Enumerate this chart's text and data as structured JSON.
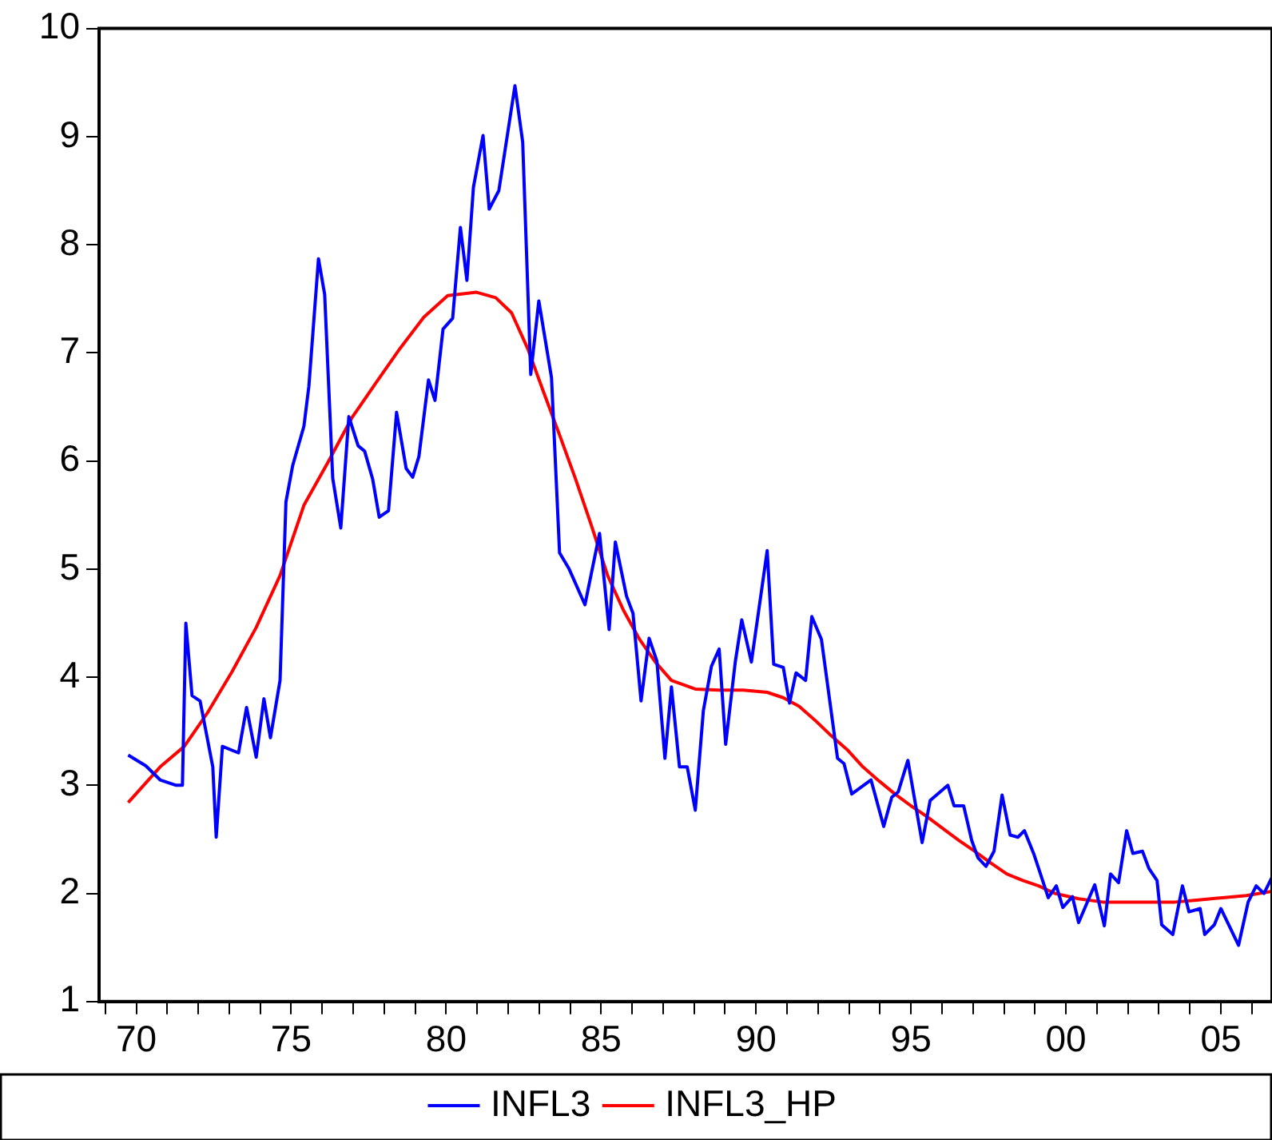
{
  "chart_data": {
    "type": "line",
    "legend": "bottom",
    "grid": false,
    "marker": "none",
    "line_style": "solid",
    "xlim": [
      1968.8,
      2006.65
    ],
    "ylim": [
      1,
      10
    ],
    "yticks": [
      1,
      2,
      3,
      4,
      5,
      6,
      7,
      8,
      9,
      10
    ],
    "xticks": [
      {
        "value": 1969,
        "label": null
      },
      {
        "value": 1970,
        "label": "70"
      },
      {
        "value": 1971,
        "label": null
      },
      {
        "value": 1972,
        "label": null
      },
      {
        "value": 1973,
        "label": null
      },
      {
        "value": 1974,
        "label": null
      },
      {
        "value": 1975,
        "label": "75"
      },
      {
        "value": 1976,
        "label": null
      },
      {
        "value": 1977,
        "label": null
      },
      {
        "value": 1978,
        "label": null
      },
      {
        "value": 1979,
        "label": null
      },
      {
        "value": 1980,
        "label": "80"
      },
      {
        "value": 1981,
        "label": null
      },
      {
        "value": 1982,
        "label": null
      },
      {
        "value": 1983,
        "label": null
      },
      {
        "value": 1984,
        "label": null
      },
      {
        "value": 1985,
        "label": "85"
      },
      {
        "value": 1986,
        "label": null
      },
      {
        "value": 1987,
        "label": null
      },
      {
        "value": 1988,
        "label": null
      },
      {
        "value": 1989,
        "label": null
      },
      {
        "value": 1990,
        "label": "90"
      },
      {
        "value": 1991,
        "label": null
      },
      {
        "value": 1992,
        "label": null
      },
      {
        "value": 1993,
        "label": null
      },
      {
        "value": 1994,
        "label": null
      },
      {
        "value": 1995,
        "label": "95"
      },
      {
        "value": 1996,
        "label": null
      },
      {
        "value": 1997,
        "label": null
      },
      {
        "value": 1998,
        "label": null
      },
      {
        "value": 1999,
        "label": null
      },
      {
        "value": 2000,
        "label": "00"
      },
      {
        "value": 2001,
        "label": null
      },
      {
        "value": 2002,
        "label": null
      },
      {
        "value": 2003,
        "label": null
      },
      {
        "value": 2004,
        "label": null
      },
      {
        "value": 2005,
        "label": "05"
      },
      {
        "value": 2006,
        "label": null
      }
    ],
    "series": [
      {
        "name": "INFL3",
        "color": "#0000ff",
        "x": [
          1969.74,
          1970.31,
          1970.77,
          1971.29,
          1971.49,
          1971.6,
          1971.8,
          1972.06,
          1972.47,
          1972.58,
          1972.78,
          1973.3,
          1973.56,
          1973.87,
          1974.12,
          1974.33,
          1974.64,
          1974.83,
          1975.05,
          1975.41,
          1975.57,
          1975.88,
          1976.08,
          1976.34,
          1976.6,
          1976.86,
          1977.16,
          1977.37,
          1977.63,
          1977.84,
          1978.14,
          1978.4,
          1978.71,
          1978.92,
          1979.12,
          1979.43,
          1979.64,
          1979.9,
          1980.21,
          1980.46,
          1980.67,
          1980.88,
          1981.19,
          1981.39,
          1981.7,
          1982.22,
          1982.47,
          1982.73,
          1982.99,
          1983.4,
          1983.66,
          1983.97,
          1984.48,
          1984.95,
          1985.26,
          1985.46,
          1985.82,
          1986.03,
          1986.29,
          1986.55,
          1986.8,
          1987.06,
          1987.27,
          1987.53,
          1987.78,
          1988.04,
          1988.3,
          1988.56,
          1988.81,
          1989.02,
          1989.33,
          1989.54,
          1989.85,
          1990.36,
          1990.57,
          1990.88,
          1991.08,
          1991.29,
          1991.6,
          1991.8,
          1992.11,
          1992.63,
          1992.84,
          1993.09,
          1993.71,
          1994.12,
          1994.38,
          1994.59,
          1994.9,
          1995.36,
          1995.62,
          1996.19,
          1996.39,
          1996.7,
          1996.96,
          1997.16,
          1997.42,
          1997.68,
          1997.94,
          1998.2,
          1998.45,
          1998.66,
          1998.97,
          1999.12,
          1999.43,
          1999.69,
          1999.9,
          2000.21,
          2000.41,
          2000.93,
          2001.24,
          2001.44,
          2001.7,
          2001.96,
          2002.16,
          2002.47,
          2002.68,
          2002.94,
          2003.09,
          2003.45,
          2003.76,
          2003.97,
          2004.33,
          2004.48,
          2004.79,
          2005.0,
          2005.57,
          2005.88,
          2006.14,
          2006.39,
          2006.65
        ],
        "values": [
          3.28,
          3.18,
          3.05,
          3.0,
          3.0,
          4.5,
          3.83,
          3.78,
          3.17,
          2.52,
          3.36,
          3.3,
          3.72,
          3.26,
          3.8,
          3.44,
          3.97,
          5.62,
          5.96,
          6.32,
          6.69,
          7.87,
          7.54,
          5.84,
          5.38,
          6.41,
          6.14,
          6.09,
          5.83,
          5.48,
          5.54,
          6.45,
          5.93,
          5.85,
          6.04,
          6.75,
          6.56,
          7.22,
          7.32,
          8.16,
          7.67,
          8.53,
          9.01,
          8.33,
          8.5,
          9.47,
          8.95,
          6.8,
          7.48,
          6.77,
          5.15,
          5.0,
          4.67,
          5.33,
          4.44,
          5.25,
          4.75,
          4.59,
          3.78,
          4.36,
          4.15,
          3.25,
          3.91,
          3.17,
          3.17,
          2.77,
          3.69,
          4.1,
          4.26,
          3.38,
          4.14,
          4.53,
          4.14,
          5.17,
          4.12,
          4.09,
          3.76,
          4.04,
          3.97,
          4.56,
          4.35,
          3.25,
          3.2,
          2.92,
          3.05,
          2.62,
          2.89,
          2.94,
          3.23,
          2.47,
          2.86,
          3.0,
          2.81,
          2.81,
          2.49,
          2.33,
          2.25,
          2.39,
          2.91,
          2.54,
          2.52,
          2.58,
          2.36,
          2.23,
          1.96,
          2.07,
          1.87,
          1.97,
          1.73,
          2.08,
          1.7,
          2.18,
          2.1,
          2.58,
          2.37,
          2.39,
          2.23,
          2.12,
          1.71,
          1.62,
          2.07,
          1.83,
          1.86,
          1.62,
          1.71,
          1.86,
          1.52,
          1.92,
          2.07,
          2.0,
          2.15
        ]
      },
      {
        "name": "INFL3_HP",
        "color": "#ff0000",
        "x": [
          1969.74,
          1970.77,
          1971.55,
          1972.32,
          1973.09,
          1973.87,
          1974.64,
          1975.41,
          1976.19,
          1976.96,
          1977.73,
          1978.51,
          1979.28,
          1980.05,
          1980.98,
          1981.6,
          1982.11,
          1982.63,
          1983.14,
          1983.66,
          1984.18,
          1984.69,
          1985.21,
          1985.72,
          1986.24,
          1986.75,
          1987.27,
          1988.04,
          1988.81,
          1989.59,
          1990.36,
          1990.88,
          1991.39,
          1991.91,
          1992.42,
          1992.94,
          1993.45,
          1993.97,
          1994.48,
          1995.0,
          1995.52,
          1996.03,
          1996.55,
          1997.06,
          1997.58,
          1998.09,
          1998.61,
          1999.12,
          1999.64,
          2000.41,
          2001.19,
          2001.96,
          2002.73,
          2003.51,
          2004.28,
          2005.05,
          2005.82,
          2006.65
        ],
        "values": [
          2.84,
          3.17,
          3.36,
          3.68,
          4.05,
          4.46,
          4.94,
          5.59,
          5.99,
          6.4,
          6.72,
          7.04,
          7.33,
          7.53,
          7.56,
          7.51,
          7.37,
          7.04,
          6.64,
          6.24,
          5.83,
          5.4,
          4.94,
          4.62,
          4.35,
          4.14,
          3.97,
          3.89,
          3.88,
          3.88,
          3.86,
          3.81,
          3.73,
          3.6,
          3.46,
          3.33,
          3.17,
          3.04,
          2.92,
          2.81,
          2.71,
          2.6,
          2.49,
          2.39,
          2.28,
          2.18,
          2.12,
          2.07,
          2.0,
          1.95,
          1.92,
          1.92,
          1.92,
          1.92,
          1.94,
          1.96,
          1.98,
          2.02
        ]
      }
    ]
  }
}
